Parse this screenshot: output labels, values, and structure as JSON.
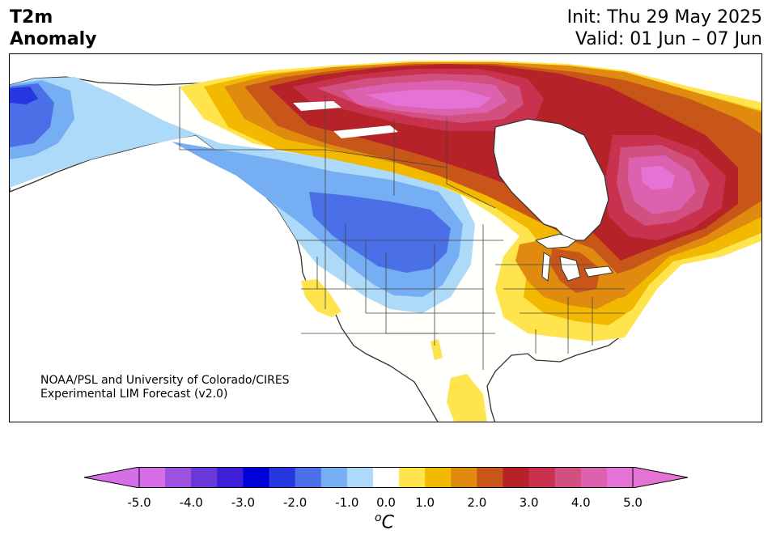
{
  "header": {
    "variable": "T2m",
    "field": "Anomaly",
    "init": "Init: Thu 29 May 2025",
    "valid": "Valid: 01 Jun – 07 Jun"
  },
  "credit": {
    "line1": "NOAA/PSL and University of Colorado/CIRES",
    "line2": "Experimental LIM Forecast (v2.0)"
  },
  "colorbar": {
    "levels": [
      -5.0,
      -4.5,
      -4.0,
      -3.5,
      -3.0,
      -2.5,
      -2.0,
      -1.5,
      -1.0,
      -0.5,
      0.5,
      1.0,
      1.5,
      2.0,
      2.5,
      3.0,
      3.5,
      4.0,
      4.5,
      5.0
    ],
    "colors": [
      "#d66ee8",
      "#9d52df",
      "#6a38d9",
      "#3c1fd6",
      "#0000d8",
      "#2737e0",
      "#4b6fe6",
      "#75aef2",
      "#aedaf9",
      "#ffffff",
      "#ffe44d",
      "#f3b900",
      "#e08a10",
      "#c85618",
      "#b52227",
      "#c8324e",
      "#d2507f",
      "#dc62b0",
      "#e573d6"
    ],
    "extend_under_color": "#d66ee8",
    "extend_over_color": "#e573d6",
    "tick_labels": [
      "-5.0",
      "-4.0",
      "-3.0",
      "-2.0",
      "-1.0",
      "0.0",
      "1.0",
      "2.0",
      "3.0",
      "4.0",
      "5.0"
    ],
    "units_base": "C",
    "units_sup": "o"
  },
  "map": {
    "region": "North America",
    "land_color": "#fffffb",
    "ocean_color": "#ffffff",
    "coastline_color": "#333333",
    "border_color": "#444444"
  }
}
